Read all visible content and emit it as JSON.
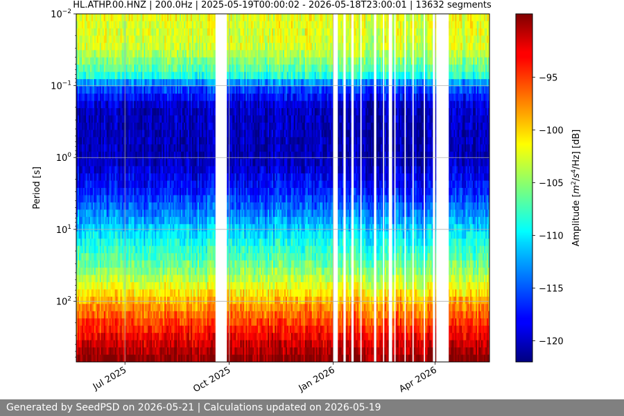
{
  "chart_data": {
    "type": "heatmap",
    "title": "HL.ATHP.00.HNZ | 200.0Hz | 2025-05-19T00:00:02 - 2026-05-18T23:00:01 | 13632 segments",
    "ylabel": "Period [s]",
    "xlabel": "",
    "x_range": [
      "2025-05-19",
      "2026-05-19"
    ],
    "y_scale": "log",
    "y_range": [
      0.01,
      700
    ],
    "y_inverted": true,
    "y_ticks": [
      0.01,
      0.1,
      1,
      10,
      100
    ],
    "y_tick_labels": [
      {
        "base": "10",
        "exp": "−2"
      },
      {
        "base": "10",
        "exp": "−1"
      },
      {
        "base": "10",
        "exp": "0"
      },
      {
        "base": "10",
        "exp": "1"
      },
      {
        "base": "10",
        "exp": "2"
      }
    ],
    "x_ticks": [
      {
        "date": "2025-07-01",
        "label": "Jul 2025"
      },
      {
        "date": "2025-10-01",
        "label": "Oct 2025"
      },
      {
        "date": "2026-01-01",
        "label": "Jan 2026"
      },
      {
        "date": "2026-04-01",
        "label": "Apr 2026"
      }
    ],
    "grid": true,
    "colormap": "jet",
    "colorbar": {
      "label_prefix": "Amplitude [",
      "label_mid1": "/",
      "label_mid2": "/Hz] [dB]",
      "label_m": "m",
      "label_s": "s",
      "sup2": "2",
      "sup4": "4",
      "range": [
        -122,
        -89
      ],
      "ticks": [
        -95,
        -100,
        -105,
        -110,
        -115,
        -120
      ],
      "tick_labels": [
        "−95",
        "−100",
        "−105",
        "−110",
        "−115",
        "−120"
      ]
    },
    "period_profile": [
      {
        "period": 0.01,
        "amplitude_db": -102
      },
      {
        "period": 0.03,
        "amplitude_db": -103
      },
      {
        "period": 0.07,
        "amplitude_db": -108
      },
      {
        "period": 0.1,
        "amplitude_db": -115
      },
      {
        "period": 0.2,
        "amplitude_db": -120
      },
      {
        "period": 1,
        "amplitude_db": -120.5
      },
      {
        "period": 3,
        "amplitude_db": -117
      },
      {
        "period": 10,
        "amplitude_db": -111
      },
      {
        "period": 40,
        "amplitude_db": -105
      },
      {
        "period": 100,
        "amplitude_db": -99
      },
      {
        "period": 300,
        "amplitude_db": -93
      },
      {
        "period": 700,
        "amplitude_db": -89
      }
    ],
    "data_gaps": [
      [
        "2025-09-19",
        "2025-09-29"
      ],
      [
        "2026-01-01",
        "2026-01-05"
      ],
      [
        "2026-01-10",
        "2026-01-12"
      ],
      [
        "2026-01-17",
        "2026-01-19"
      ],
      [
        "2026-01-25",
        "2026-01-26"
      ],
      [
        "2026-02-06",
        "2026-02-08"
      ],
      [
        "2026-02-14",
        "2026-02-15"
      ],
      [
        "2026-02-19",
        "2026-02-22"
      ],
      [
        "2026-02-24",
        "2026-02-25"
      ],
      [
        "2026-03-05",
        "2026-03-06"
      ],
      [
        "2026-03-12",
        "2026-03-13"
      ],
      [
        "2026-03-22",
        "2026-03-23"
      ],
      [
        "2026-03-30",
        "2026-04-01"
      ],
      [
        "2026-04-02",
        "2026-04-13"
      ]
    ]
  },
  "footer": {
    "text": "Generated by SeedPSD on 2026-05-21 | Calculations updated on 2026-05-19"
  }
}
